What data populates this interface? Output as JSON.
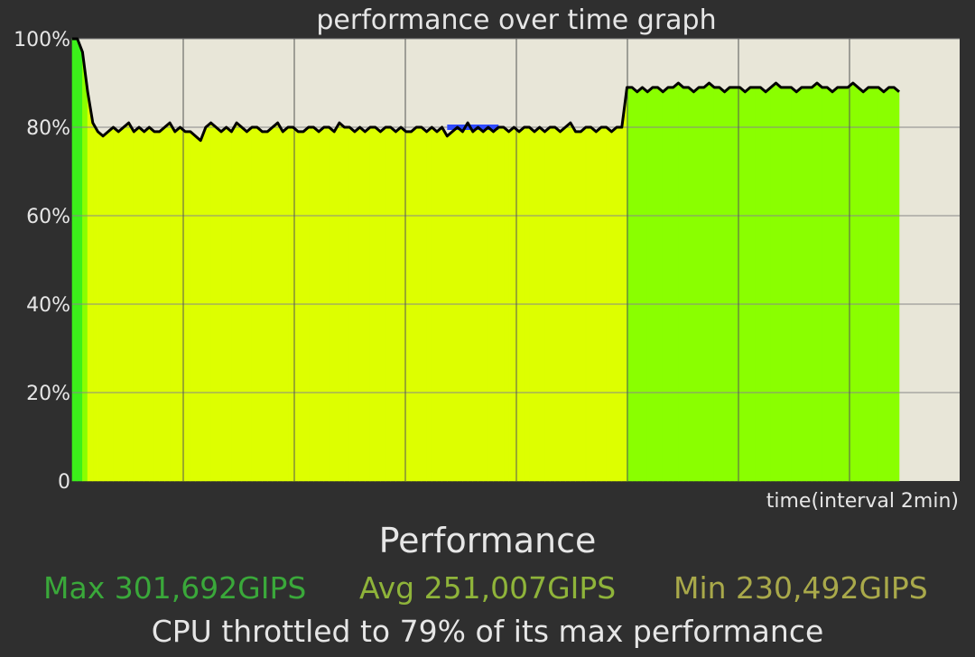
{
  "chart_data": {
    "type": "area",
    "title": "performance over time graph",
    "xlabel": "time(interval 2min)",
    "ylabel": "",
    "ylim": [
      0,
      100
    ],
    "y_ticks": [
      "0",
      "20%",
      "40%",
      "60%",
      "80%",
      "100%"
    ],
    "y_tick_values": [
      0,
      20,
      40,
      60,
      80,
      100
    ],
    "x_gridline_count": 8,
    "grid": true,
    "series": [
      {
        "values": [
          100,
          100,
          97,
          88,
          81,
          79,
          78,
          79,
          80,
          79,
          80,
          81,
          79,
          80,
          79,
          80,
          79,
          79,
          80,
          81,
          79,
          80,
          79,
          79,
          78,
          77,
          80,
          81,
          80,
          79,
          80,
          79,
          81,
          80,
          79,
          80,
          80,
          79,
          79,
          80,
          81,
          79,
          80,
          80,
          79,
          79,
          80,
          80,
          79,
          80,
          80,
          79,
          81,
          80,
          80,
          79,
          80,
          79,
          80,
          80,
          79,
          80,
          80,
          79,
          80,
          79,
          79,
          80,
          80,
          79,
          80,
          79,
          80,
          78,
          79,
          80,
          79,
          81,
          79,
          80,
          79,
          80,
          79,
          80,
          80,
          79,
          80,
          79,
          80,
          80,
          79,
          80,
          79,
          80,
          80,
          79,
          80,
          81,
          79,
          79,
          80,
          80,
          79,
          80,
          80,
          79,
          80,
          80,
          89,
          89,
          88,
          89,
          88,
          89,
          89,
          88,
          89,
          89,
          90,
          89,
          89,
          88,
          89,
          89,
          90,
          89,
          89,
          88,
          89,
          89,
          89,
          88,
          89,
          89,
          89,
          88,
          89,
          90,
          89,
          89,
          89,
          88,
          89,
          89,
          89,
          90,
          89,
          89,
          88,
          89,
          89,
          89,
          90,
          89,
          88,
          89,
          89,
          89,
          88,
          89,
          89,
          88
        ]
      }
    ],
    "highlight_segment": {
      "start_index": 73,
      "end_index": 83,
      "value": 80,
      "color": "#2f4bff"
    },
    "colors": {
      "background": "#2f2f2f",
      "plot_background": "#e8e6d8",
      "area_yellow": "#ddff00",
      "area_green": "#8aff00",
      "area_bright_green": "#3cf01a",
      "line": "#000000",
      "grid": "#888888"
    }
  },
  "summary": {
    "title": "Performance",
    "max_label": "Max 301,692GIPS",
    "avg_label": "Avg 251,007GIPS",
    "min_label": "Min 230,492GIPS",
    "max_color": "#3aa83a",
    "avg_color": "#8fb43a",
    "min_color": "#a9a94a",
    "throttle_note": "CPU throttled to 79% of its max performance"
  }
}
